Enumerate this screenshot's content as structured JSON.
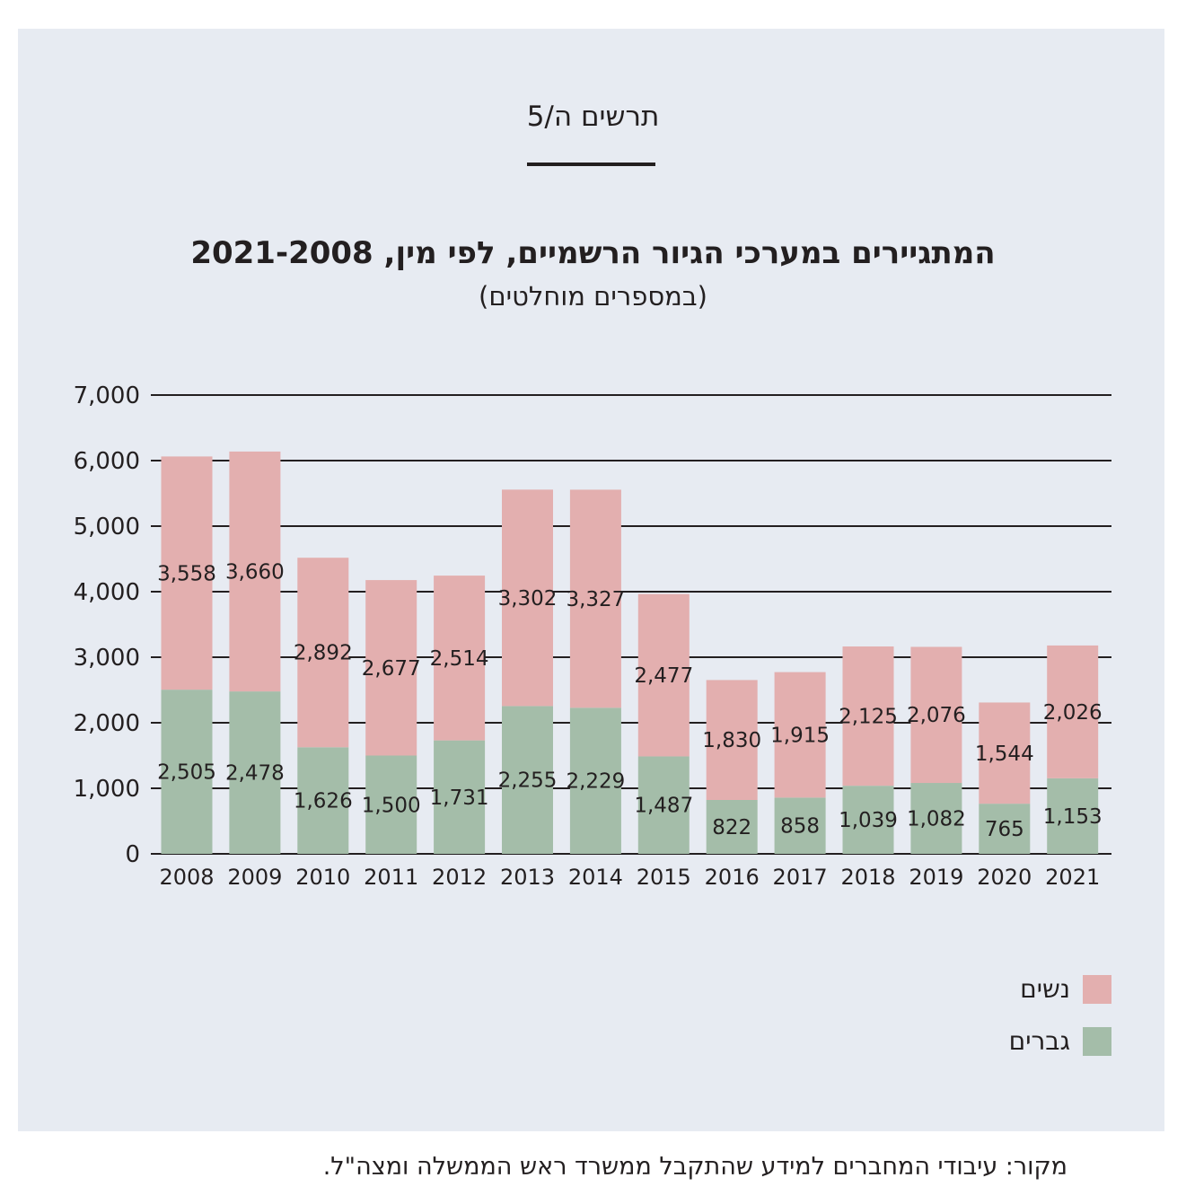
{
  "figure_label": "תרשים ה/5",
  "source_note": "מקור: עיבודי המחברים למידע שהתקבל ממשרד ראש הממשלה ומצה\"ל.",
  "colors": {
    "women": "#e3afaf",
    "men": "#a4bda9",
    "panel": "#e7ebf2",
    "gridline": "#231f20"
  },
  "chart_data": {
    "type": "bar",
    "stacked": true,
    "title": "המתגיירים במערכי הגיור הרשמיים, לפי מין, 2021-2008",
    "subtitle": "(במספרים מוחלטים)",
    "categories": [
      "2008",
      "2009",
      "2010",
      "2011",
      "2012",
      "2013",
      "2014",
      "2015",
      "2016",
      "2017",
      "2018",
      "2019",
      "2020",
      "2021"
    ],
    "series": [
      {
        "name": "גברים",
        "color": "#a4bda9",
        "values": [
          2505,
          2478,
          1626,
          1500,
          1731,
          2255,
          2229,
          1487,
          822,
          858,
          1039,
          1082,
          765,
          1153
        ],
        "labels": [
          "2,505",
          "2,478",
          "1,626",
          "1,500",
          "1,731",
          "2,255",
          "2,229",
          "1,487",
          "822",
          "858",
          "1,039",
          "1,082",
          "765",
          "1,153"
        ]
      },
      {
        "name": "נשים",
        "color": "#e3afaf",
        "values": [
          3558,
          3660,
          2892,
          2677,
          2514,
          3302,
          3327,
          2477,
          1830,
          1915,
          2125,
          2076,
          1544,
          2026
        ],
        "labels": [
          "3,558",
          "3,660",
          "2,892",
          "2,677",
          "2,514",
          "3,302",
          "3,327",
          "2,477",
          "1,830",
          "1,915",
          "2,125",
          "2,076",
          "1,544",
          "2,026"
        ]
      }
    ],
    "ylim": [
      0,
      7000
    ],
    "yticks": [
      0,
      1000,
      2000,
      3000,
      4000,
      5000,
      6000,
      7000
    ],
    "ytick_labels": [
      "0",
      "1,000",
      "2,000",
      "3,000",
      "4,000",
      "5,000",
      "6,000",
      "7,000"
    ],
    "grid": true,
    "legend_position": "bottom-right",
    "legend": [
      {
        "label": "נשים",
        "color": "#e3afaf"
      },
      {
        "label": "גברים",
        "color": "#a4bda9"
      }
    ]
  }
}
